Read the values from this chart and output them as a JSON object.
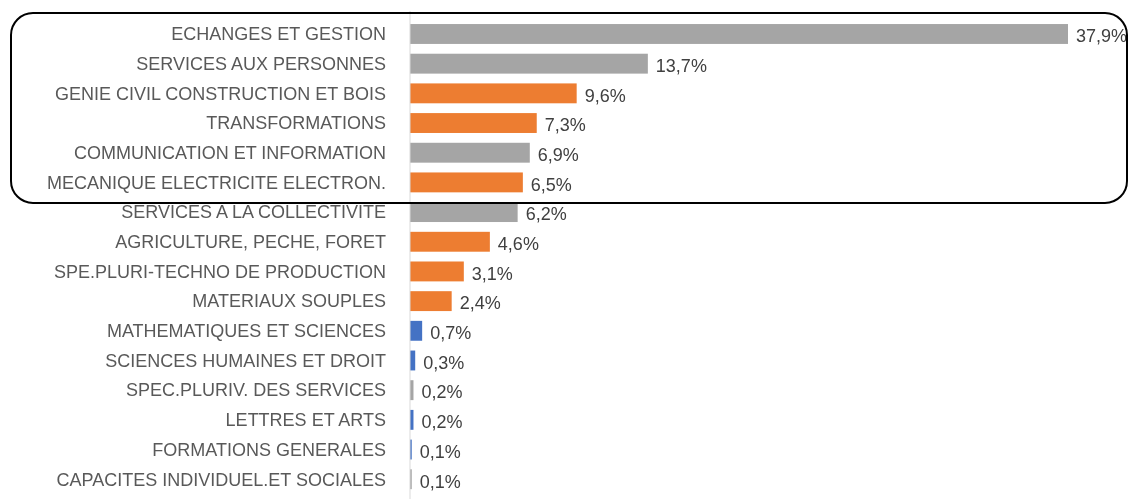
{
  "chart_data": {
    "type": "bar",
    "orientation": "horizontal",
    "categories": [
      "ECHANGES ET GESTION",
      "SERVICES AUX PERSONNES",
      "GENIE CIVIL CONSTRUCTION ET BOIS",
      "TRANSFORMATIONS",
      "COMMUNICATION ET INFORMATION",
      "MECANIQUE ELECTRICITE ELECTRON.",
      "SERVICES A LA COLLECTIVITE",
      "AGRICULTURE, PECHE, FORET",
      "SPE.PLURI-TECHNO DE PRODUCTION",
      "MATERIAUX SOUPLES",
      "MATHEMATIQUES ET SCIENCES",
      "SCIENCES HUMAINES ET DROIT",
      "SPEC.PLURIV. DES SERVICES",
      "LETTRES ET ARTS",
      "FORMATIONS GENERALES",
      "CAPACITES INDIVIDUEL.ET SOCIALES"
    ],
    "values": [
      37.9,
      13.7,
      9.6,
      7.3,
      6.9,
      6.5,
      6.2,
      4.6,
      3.1,
      2.4,
      0.7,
      0.3,
      0.2,
      0.2,
      0.1,
      0.1
    ],
    "value_labels": [
      "37,9%",
      "13,7%",
      "9,6%",
      "7,3%",
      "6,9%",
      "6,5%",
      "6,2%",
      "4,6%",
      "3,1%",
      "2,4%",
      "0,7%",
      "0,3%",
      "0,2%",
      "0,2%",
      "0,1%",
      "0,1%"
    ],
    "colors": [
      "#a5a5a5",
      "#a5a5a5",
      "#ed7d31",
      "#ed7d31",
      "#a5a5a5",
      "#ed7d31",
      "#a5a5a5",
      "#ed7d31",
      "#ed7d31",
      "#ed7d31",
      "#4472c4",
      "#4472c4",
      "#a5a5a5",
      "#4472c4",
      "#4472c4",
      "#a5a5a5"
    ]
  }
}
